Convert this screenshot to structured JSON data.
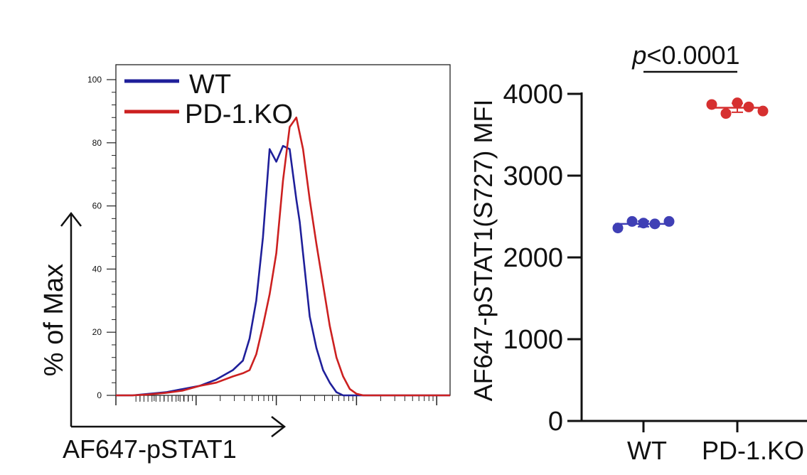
{
  "chart_data": [
    {
      "type": "line",
      "subtype": "flow-cytometry-histogram",
      "ylabel": "% of Max",
      "xlabel": "AF647-pSTAT1",
      "ylim": [
        0,
        100
      ],
      "y_ticks": [
        "0",
        "20",
        "40",
        "60",
        "80",
        "100"
      ],
      "legend_position": "top-left",
      "series": [
        {
          "name": "WT",
          "color": "#1f1f9a",
          "x": [
            0.0,
            0.05,
            0.1,
            0.15,
            0.2,
            0.25,
            0.3,
            0.35,
            0.38,
            0.4,
            0.42,
            0.44,
            0.46,
            0.48,
            0.5,
            0.52,
            0.53,
            0.54,
            0.55,
            0.56,
            0.57,
            0.58,
            0.6,
            0.62,
            0.64,
            0.66,
            0.68,
            0.7,
            0.72,
            0.74,
            0.76,
            0.78,
            0.8,
            0.85,
            0.9,
            1.0
          ],
          "y": [
            0,
            0,
            0.5,
            1,
            2,
            3,
            5,
            8,
            11,
            18,
            30,
            50,
            78,
            74,
            79,
            78,
            70,
            62,
            55,
            45,
            35,
            25,
            15,
            8,
            4,
            1,
            0,
            0,
            0,
            0,
            0,
            0,
            0,
            0,
            0,
            0
          ]
        },
        {
          "name": "PD-1.KO",
          "color": "#cc2020",
          "x": [
            0.0,
            0.05,
            0.1,
            0.15,
            0.2,
            0.25,
            0.3,
            0.35,
            0.38,
            0.4,
            0.42,
            0.44,
            0.46,
            0.48,
            0.5,
            0.52,
            0.54,
            0.56,
            0.58,
            0.6,
            0.62,
            0.64,
            0.66,
            0.68,
            0.7,
            0.72,
            0.74,
            0.76,
            0.78,
            0.8,
            0.85,
            0.9,
            1.0
          ],
          "y": [
            0,
            0,
            0.3,
            0.8,
            1.5,
            3,
            4,
            6,
            7,
            8,
            13,
            22,
            32,
            45,
            68,
            85,
            88,
            78,
            62,
            48,
            35,
            22,
            12,
            6,
            2,
            0.5,
            0,
            0,
            0,
            0,
            0,
            0,
            0
          ]
        }
      ]
    },
    {
      "type": "scatter",
      "subtype": "dot-plot-with-error-bars",
      "ylabel": "AF647-pSTAT1(S727) MFI",
      "categories": [
        "WT",
        "PD-1.KO"
      ],
      "ylim": [
        0,
        4000
      ],
      "y_ticks": [
        "0",
        "1000",
        "2000",
        "3000",
        "4000"
      ],
      "annotation": {
        "prefix": "p",
        "text": "<0.0001"
      },
      "series": [
        {
          "name": "WT",
          "color": "#3f3fb5",
          "values": [
            2360,
            2440,
            2420,
            2410,
            2440
          ],
          "mean": 2410,
          "sd": 35
        },
        {
          "name": "PD-1.KO",
          "color": "#d63030",
          "values": [
            3870,
            3760,
            3890,
            3840,
            3790
          ],
          "mean": 3830,
          "sd": 55
        }
      ]
    }
  ]
}
